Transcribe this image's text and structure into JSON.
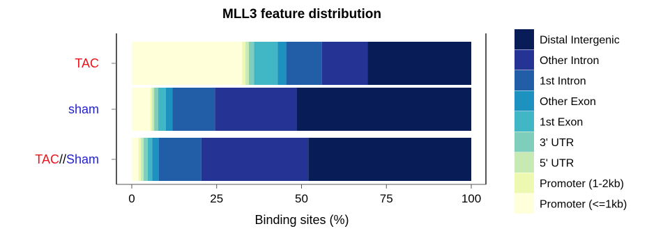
{
  "chart_data": {
    "type": "bar",
    "orientation": "horizontal",
    "stacked": true,
    "title": "MLL3 feature distribution",
    "xlabel": "Binding sites (%)",
    "ylabel": "",
    "xlim": [
      0,
      100
    ],
    "xticks": [
      0,
      25,
      50,
      75,
      100
    ],
    "grid": false,
    "legend_position": "right",
    "categories": [
      {
        "parts": [
          {
            "text": "TAC",
            "color": "#e8141c"
          }
        ]
      },
      {
        "parts": [
          {
            "text": "sham",
            "color": "#2222cc"
          }
        ]
      },
      {
        "parts": [
          {
            "text": "TAC",
            "color": "#e8141c"
          },
          {
            "text": "//",
            "color": "#000000"
          },
          {
            "text": "Sham",
            "color": "#2222cc"
          }
        ]
      }
    ],
    "series": [
      {
        "name": "Promoter (<=1kb)",
        "color": "#ffffd9",
        "values": [
          32.5,
          5.5,
          2.0
        ]
      },
      {
        "name": "Promoter (1-2kb)",
        "color": "#edf8b1",
        "values": [
          1.0,
          0.5,
          0.7
        ]
      },
      {
        "name": "5' UTR",
        "color": "#c7e9b4",
        "values": [
          1.0,
          0.6,
          0.8
        ]
      },
      {
        "name": "3' UTR",
        "color": "#7fcdbb",
        "values": [
          1.5,
          1.2,
          1.2
        ]
      },
      {
        "name": "1st Exon",
        "color": "#41b6c4",
        "values": [
          7.0,
          2.2,
          1.3
        ]
      },
      {
        "name": "Other Exon",
        "color": "#1d91c0",
        "values": [
          2.5,
          2.0,
          2.0
        ]
      },
      {
        "name": "1st Intron",
        "color": "#225ea8",
        "values": [
          10.5,
          12.5,
          12.5
        ]
      },
      {
        "name": "Other Intron",
        "color": "#253494",
        "values": [
          13.5,
          24.0,
          31.5
        ]
      },
      {
        "name": "Distal Intergenic",
        "color": "#081d58",
        "values": [
          30.5,
          51.5,
          48.0
        ]
      }
    ]
  }
}
